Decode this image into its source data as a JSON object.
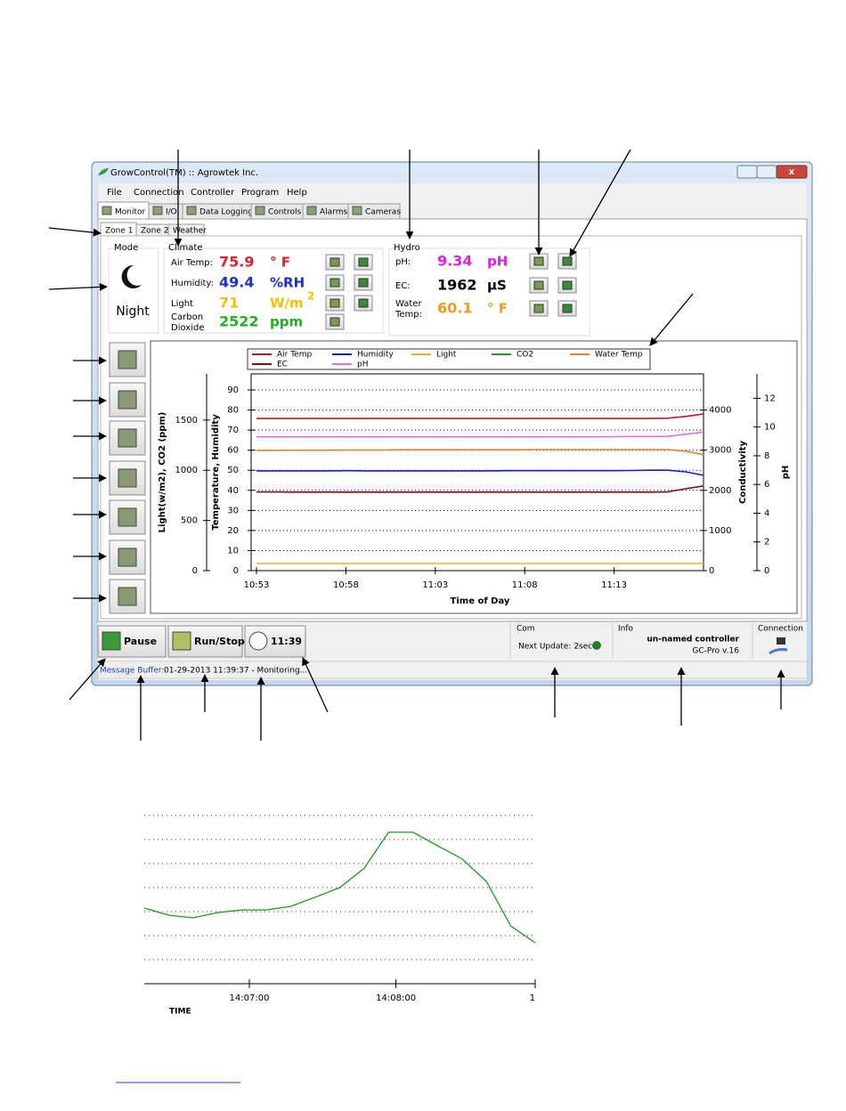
{
  "window": {
    "title": "GrowControl(TM) :: Agrowtek Inc."
  },
  "menu": [
    "File",
    "Connection",
    "Controller",
    "Program",
    "Help"
  ],
  "tabs": [
    "Monitor",
    "I/O",
    "Data Logging",
    "Controls",
    "Alarms",
    "Cameras"
  ],
  "zone_tabs": [
    "Zone 1",
    "Zone 2",
    "Weather"
  ],
  "mode": {
    "title": "Mode",
    "state": "Night"
  },
  "climate": {
    "title": "Climate",
    "readings": [
      {
        "label": [
          "Air Temp:"
        ],
        "value": "75.9",
        "unit": "° F",
        "color": "#e0202a"
      },
      {
        "label": [
          "Humidity:"
        ],
        "value": "49.4",
        "unit": "%RH",
        "color": "#1c2fd0"
      },
      {
        "label": [
          "Light"
        ],
        "value": "71",
        "unit": "W/m",
        "superscript": "2",
        "color": "#f2c200"
      },
      {
        "label": [
          "Carbon",
          "Dioxide"
        ],
        "value": "2522",
        "unit": "ppm",
        "color": "#22b022"
      }
    ]
  },
  "hydro": {
    "title": "Hydro",
    "readings": [
      {
        "label": [
          "pH:"
        ],
        "value": "9.34",
        "unit": "pH",
        "color": "#e020e0"
      },
      {
        "label": [
          "EC:"
        ],
        "value": "1962",
        "unit": "µS",
        "color": "#000000"
      },
      {
        "label": [
          "Water",
          "Temp:"
        ],
        "value": "60.1",
        "unit": "° F",
        "color": "#f39a20"
      }
    ]
  },
  "buttons": [
    "Pause",
    "Run/Stop",
    "11:39"
  ],
  "com": {
    "title": "Com",
    "text": "Next Update: 2sec"
  },
  "info": {
    "title": "Info",
    "name": "un-named controller",
    "version": "GC-Pro v.16"
  },
  "connection": {
    "title": "Connection"
  },
  "message_buffer": {
    "label": "Message Buffer:",
    "text": "01-29-2013 11:39:37 - Monitoring..."
  },
  "chart_data": [
    {
      "type": "line",
      "xlabel": "Time of Day",
      "x": [
        "10:53",
        "10:54",
        "10:55",
        "10:56",
        "10:57",
        "10:58",
        "10:59",
        "11:00",
        "11:01",
        "11:02",
        "11:03",
        "11:04",
        "11:05",
        "11:06",
        "11:07",
        "11:08",
        "11:09",
        "11:10",
        "11:11",
        "11:12",
        "11:13",
        "11:14",
        "11:15",
        "11:16",
        "11:17",
        "11:18"
      ],
      "xlim": [
        "10:53",
        "11:18"
      ],
      "xticks": [
        "10:53",
        "10:58",
        "11:03",
        "11:08",
        "11:13"
      ],
      "axes": [
        {
          "name": "light",
          "label": "Light(w/m2), CO2 (ppm)",
          "ylim": [
            0,
            1960
          ],
          "yticks": [
            0,
            500,
            1000,
            1500
          ]
        },
        {
          "name": "temp",
          "label": "Temperature, Humidity",
          "ylim": [
            0,
            98
          ],
          "yticks": [
            0,
            10,
            20,
            30,
            40,
            50,
            60,
            70,
            80,
            90
          ],
          "grid": true
        },
        {
          "name": "cond",
          "label": "Conductivity",
          "ylim": [
            0,
            4900
          ],
          "yticks": [
            0,
            1000,
            2000,
            3000,
            4000
          ]
        },
        {
          "name": "ph",
          "label": "pH",
          "ylim": [
            0,
            13.7
          ],
          "yticks": [
            0,
            2,
            4,
            6,
            8,
            10,
            12
          ]
        }
      ],
      "series": [
        {
          "name": "Air Temp",
          "color": "#c8141e",
          "axis": "temp",
          "values": [
            75.8,
            75.8,
            75.8,
            75.8,
            75.8,
            75.8,
            75.8,
            75.8,
            75.8,
            75.8,
            75.8,
            75.8,
            75.8,
            75.8,
            75.8,
            75.8,
            75.8,
            75.8,
            75.8,
            75.8,
            75.8,
            75.8,
            75.8,
            75.9,
            76.8,
            78.0
          ]
        },
        {
          "name": "Humidity",
          "color": "#1020c8",
          "axis": "temp",
          "values": [
            49.7,
            49.7,
            49.7,
            49.7,
            49.7,
            49.8,
            49.7,
            49.7,
            49.7,
            49.7,
            49.7,
            49.7,
            49.7,
            49.7,
            49.8,
            49.8,
            49.8,
            49.8,
            49.8,
            49.8,
            49.8,
            49.9,
            50.0,
            50.0,
            49.2,
            47.5
          ]
        },
        {
          "name": "Light",
          "color": "#f0b020",
          "axis": "light",
          "values": [
            71,
            71,
            71,
            71,
            71,
            71,
            71,
            71,
            71,
            71,
            71,
            71,
            71,
            71,
            71,
            71,
            71,
            71,
            71,
            71,
            71,
            71,
            71,
            71,
            71,
            71
          ]
        },
        {
          "name": "CO2",
          "color": "#20a020",
          "axis": "light",
          "values": [
            null,
            null,
            null,
            null,
            null,
            null,
            null,
            null,
            null,
            null,
            null,
            null,
            null,
            null,
            null,
            null,
            null,
            null,
            null,
            null,
            null,
            null,
            null,
            null,
            null,
            null
          ]
        },
        {
          "name": "Water Temp",
          "color": "#f08020",
          "axis": "temp",
          "values": [
            59.9,
            59.9,
            60.0,
            60.0,
            60.0,
            60.1,
            60.1,
            60.1,
            60.2,
            60.2,
            60.2,
            60.2,
            60.2,
            60.2,
            60.2,
            60.2,
            60.3,
            60.3,
            60.3,
            60.3,
            60.3,
            60.3,
            60.3,
            60.3,
            59.5,
            57.8
          ]
        },
        {
          "name": "EC",
          "color": "#7a1010",
          "axis": "cond",
          "values": [
            1960,
            1960,
            1955,
            1955,
            1955,
            1955,
            1955,
            1955,
            1955,
            1955,
            1955,
            1955,
            1955,
            1955,
            1955,
            1955,
            1955,
            1955,
            1955,
            1955,
            1955,
            1955,
            1955,
            1960,
            2040,
            2110
          ]
        },
        {
          "name": "pH",
          "color": "#e070e0",
          "axis": "ph",
          "values": [
            9.32,
            9.32,
            9.32,
            9.32,
            9.32,
            9.32,
            9.32,
            9.32,
            9.32,
            9.32,
            9.32,
            9.32,
            9.32,
            9.32,
            9.32,
            9.32,
            9.32,
            9.32,
            9.32,
            9.32,
            9.33,
            9.34,
            9.34,
            9.35,
            9.5,
            9.65
          ]
        }
      ]
    },
    {
      "type": "line",
      "xlabel": "TIME",
      "x": [
        "14:06:17",
        "14:06:27",
        "14:06:37",
        "14:06:47",
        "14:06:57",
        "14:07:07",
        "14:07:17",
        "14:07:27",
        "14:07:37",
        "14:07:47",
        "14:07:57",
        "14:08:07",
        "14:08:17",
        "14:08:27",
        "14:08:37",
        "14:08:47",
        "14:08:57"
      ],
      "xlim": [
        "14:06:17",
        "14:08:57"
      ],
      "xticks": [
        "14:07:00",
        "14:08:00",
        {
          "value": "14:08:57",
          "label": "1"
        }
      ],
      "ylim": [
        0,
        7
      ],
      "grid": true,
      "series": [
        {
          "color": "#1e9a1e",
          "values": [
            3.15,
            2.85,
            2.74,
            2.96,
            3.07,
            3.07,
            3.22,
            3.6,
            4.0,
            4.8,
            6.3,
            6.3,
            5.74,
            5.2,
            4.26,
            2.4,
            1.7
          ]
        }
      ]
    }
  ]
}
